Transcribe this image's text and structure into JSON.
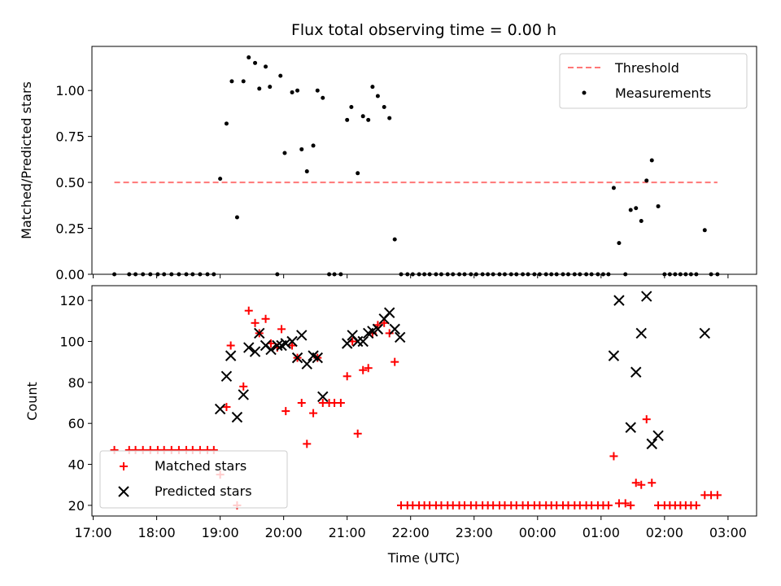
{
  "chart_data": [
    {
      "type": "scatter",
      "title": "Flux total observing time = 0.00 h",
      "xlabel": "",
      "ylabel": "Matched/Predicted stars",
      "ylim": [
        0,
        1.24
      ],
      "yticks": [
        "0.00",
        "0.25",
        "0.50",
        "0.75",
        "1.00"
      ],
      "xlim_hours": [
        16.98,
        27.45
      ],
      "legend_position": "top-right",
      "threshold": {
        "name": "Threshold",
        "value": 0.5,
        "x_range": [
          "17:20",
          "02:50"
        ],
        "color": "#ff7777"
      },
      "series": [
        {
          "name": "Measurements",
          "color": "#000000",
          "points": [
            [
              "17:20",
              0
            ],
            [
              "17:34",
              0
            ],
            [
              "17:40",
              0
            ],
            [
              "17:47",
              0
            ],
            [
              "17:54",
              0
            ],
            [
              "18:01",
              0
            ],
            [
              "18:07",
              0
            ],
            [
              "18:14",
              0
            ],
            [
              "18:21",
              0
            ],
            [
              "18:28",
              0
            ],
            [
              "18:34",
              0
            ],
            [
              "18:41",
              0
            ],
            [
              "18:48",
              0
            ],
            [
              "18:54",
              0
            ],
            [
              "19:00",
              0.52
            ],
            [
              "19:06",
              0.82
            ],
            [
              "19:11",
              1.05
            ],
            [
              "19:16",
              0.31
            ],
            [
              "19:22",
              1.05
            ],
            [
              "19:27",
              1.18
            ],
            [
              "19:33",
              1.15
            ],
            [
              "19:37",
              1.01
            ],
            [
              "19:43",
              1.13
            ],
            [
              "19:47",
              1.02
            ],
            [
              "19:54",
              0
            ],
            [
              "19:57",
              1.08
            ],
            [
              "20:01",
              0.66
            ],
            [
              "20:08",
              0.99
            ],
            [
              "20:13",
              1.0
            ],
            [
              "20:17",
              0.68
            ],
            [
              "20:22",
              0.56
            ],
            [
              "20:28",
              0.7
            ],
            [
              "20:32",
              1.0
            ],
            [
              "20:37",
              0.96
            ],
            [
              "20:43",
              0
            ],
            [
              "20:48",
              0
            ],
            [
              "20:54",
              0
            ],
            [
              "21:00",
              0.84
            ],
            [
              "21:04",
              0.91
            ],
            [
              "21:10",
              0.55
            ],
            [
              "21:15",
              0.86
            ],
            [
              "21:20",
              0.84
            ],
            [
              "21:24",
              1.02
            ],
            [
              "21:29",
              0.97
            ],
            [
              "21:35",
              0.91
            ],
            [
              "21:40",
              0.85
            ],
            [
              "21:45",
              0.19
            ],
            [
              "21:51",
              0
            ],
            [
              "21:57",
              0
            ],
            [
              "22:02",
              0
            ],
            [
              "22:08",
              0
            ],
            [
              "22:13",
              0
            ],
            [
              "22:18",
              0
            ],
            [
              "22:24",
              0
            ],
            [
              "22:29",
              0
            ],
            [
              "22:35",
              0
            ],
            [
              "22:40",
              0
            ],
            [
              "22:46",
              0
            ],
            [
              "22:51",
              0
            ],
            [
              "22:57",
              0
            ],
            [
              "23:02",
              0
            ],
            [
              "23:08",
              0
            ],
            [
              "23:13",
              0
            ],
            [
              "23:18",
              0
            ],
            [
              "23:24",
              0
            ],
            [
              "23:29",
              0
            ],
            [
              "23:35",
              0
            ],
            [
              "23:40",
              0
            ],
            [
              "23:46",
              0
            ],
            [
              "23:51",
              0
            ],
            [
              "23:57",
              0
            ],
            [
              "00:02",
              0
            ],
            [
              "00:08",
              0
            ],
            [
              "00:13",
              0
            ],
            [
              "00:18",
              0
            ],
            [
              "00:24",
              0
            ],
            [
              "00:29",
              0
            ],
            [
              "00:35",
              0
            ],
            [
              "00:40",
              0
            ],
            [
              "00:46",
              0
            ],
            [
              "00:51",
              0
            ],
            [
              "00:57",
              0
            ],
            [
              "01:02",
              0
            ],
            [
              "01:07",
              0
            ],
            [
              "01:12",
              0.47
            ],
            [
              "01:17",
              0.17
            ],
            [
              "01:23",
              0
            ],
            [
              "01:28",
              0.35
            ],
            [
              "01:33",
              0.36
            ],
            [
              "01:38",
              0.29
            ],
            [
              "01:43",
              0.51
            ],
            [
              "01:48",
              0.62
            ],
            [
              "01:54",
              0.37
            ],
            [
              "02:00",
              0
            ],
            [
              "02:05",
              0
            ],
            [
              "02:10",
              0
            ],
            [
              "02:15",
              0
            ],
            [
              "02:20",
              0
            ],
            [
              "02:25",
              0
            ],
            [
              "02:30",
              0
            ],
            [
              "02:38",
              0.24
            ],
            [
              "02:44",
              0
            ],
            [
              "02:50",
              0
            ]
          ]
        }
      ]
    },
    {
      "type": "scatter",
      "title": "",
      "xlabel": "Time (UTC)",
      "ylabel": "Count",
      "ylim": [
        14.8,
        127.2
      ],
      "yticks": [
        "20",
        "40",
        "60",
        "80",
        "100",
        "120"
      ],
      "xticks": [
        "17:00",
        "18:00",
        "19:00",
        "20:00",
        "21:00",
        "22:00",
        "23:00",
        "00:00",
        "01:00",
        "02:00",
        "03:00"
      ],
      "xlim_hours": [
        16.98,
        27.45
      ],
      "legend_position": "lower-left",
      "series": [
        {
          "name": "Matched stars",
          "marker": "plus",
          "color": "#ff0000",
          "points": [
            [
              "17:20",
              47
            ],
            [
              "17:34",
              47
            ],
            [
              "17:40",
              47
            ],
            [
              "17:47",
              47
            ],
            [
              "17:54",
              47
            ],
            [
              "18:01",
              47
            ],
            [
              "18:07",
              47
            ],
            [
              "18:14",
              47
            ],
            [
              "18:21",
              47
            ],
            [
              "18:28",
              47
            ],
            [
              "18:34",
              47
            ],
            [
              "18:41",
              47
            ],
            [
              "18:48",
              47
            ],
            [
              "18:54",
              47
            ],
            [
              "19:00",
              35
            ],
            [
              "19:06",
              68
            ],
            [
              "19:10",
              98
            ],
            [
              "19:16",
              20
            ],
            [
              "19:22",
              78
            ],
            [
              "19:27",
              115
            ],
            [
              "19:33",
              109
            ],
            [
              "19:37",
              104
            ],
            [
              "19:43",
              111
            ],
            [
              "19:48",
              99
            ],
            [
              "19:54",
              97
            ],
            [
              "19:58",
              106
            ],
            [
              "20:02",
              66
            ],
            [
              "20:08",
              98
            ],
            [
              "20:13",
              92
            ],
            [
              "20:17",
              70
            ],
            [
              "20:22",
              50
            ],
            [
              "20:28",
              65
            ],
            [
              "20:32",
              92
            ],
            [
              "20:37",
              70
            ],
            [
              "20:43",
              70
            ],
            [
              "20:48",
              70
            ],
            [
              "20:54",
              70
            ],
            [
              "21:00",
              83
            ],
            [
              "21:05",
              100
            ],
            [
              "21:10",
              55
            ],
            [
              "21:15",
              86
            ],
            [
              "21:20",
              87
            ],
            [
              "21:24",
              104
            ],
            [
              "21:29",
              108
            ],
            [
              "21:35",
              109
            ],
            [
              "21:40",
              104
            ],
            [
              "21:45",
              90
            ],
            [
              "21:51",
              20
            ],
            [
              "21:57",
              20
            ],
            [
              "22:02",
              20
            ],
            [
              "22:08",
              20
            ],
            [
              "22:13",
              20
            ],
            [
              "22:18",
              20
            ],
            [
              "22:24",
              20
            ],
            [
              "22:29",
              20
            ],
            [
              "22:35",
              20
            ],
            [
              "22:40",
              20
            ],
            [
              "22:46",
              20
            ],
            [
              "22:51",
              20
            ],
            [
              "22:57",
              20
            ],
            [
              "23:02",
              20
            ],
            [
              "23:08",
              20
            ],
            [
              "23:13",
              20
            ],
            [
              "23:18",
              20
            ],
            [
              "23:24",
              20
            ],
            [
              "23:29",
              20
            ],
            [
              "23:35",
              20
            ],
            [
              "23:40",
              20
            ],
            [
              "23:46",
              20
            ],
            [
              "23:51",
              20
            ],
            [
              "23:57",
              20
            ],
            [
              "00:02",
              20
            ],
            [
              "00:08",
              20
            ],
            [
              "00:13",
              20
            ],
            [
              "00:18",
              20
            ],
            [
              "00:24",
              20
            ],
            [
              "00:29",
              20
            ],
            [
              "00:35",
              20
            ],
            [
              "00:40",
              20
            ],
            [
              "00:46",
              20
            ],
            [
              "00:51",
              20
            ],
            [
              "00:57",
              20
            ],
            [
              "01:02",
              20
            ],
            [
              "01:07",
              20
            ],
            [
              "01:12",
              44
            ],
            [
              "01:17",
              21
            ],
            [
              "01:23",
              21
            ],
            [
              "01:28",
              20
            ],
            [
              "01:33",
              31
            ],
            [
              "01:38",
              30
            ],
            [
              "01:43",
              62
            ],
            [
              "01:48",
              31
            ],
            [
              "01:54",
              20
            ],
            [
              "02:00",
              20
            ],
            [
              "02:05",
              20
            ],
            [
              "02:10",
              20
            ],
            [
              "02:15",
              20
            ],
            [
              "02:20",
              20
            ],
            [
              "02:25",
              20
            ],
            [
              "02:30",
              20
            ],
            [
              "02:38",
              25
            ],
            [
              "02:44",
              25
            ],
            [
              "02:50",
              25
            ]
          ]
        },
        {
          "name": "Predicted stars",
          "marker": "x",
          "color": "#000000",
          "points": [
            [
              "19:00",
              67
            ],
            [
              "19:06",
              83
            ],
            [
              "19:10",
              93
            ],
            [
              "19:16",
              63
            ],
            [
              "19:22",
              74
            ],
            [
              "19:27",
              97
            ],
            [
              "19:33",
              95
            ],
            [
              "19:37",
              104
            ],
            [
              "19:43",
              98
            ],
            [
              "19:48",
              96
            ],
            [
              "19:54",
              98
            ],
            [
              "19:58",
              98
            ],
            [
              "20:02",
              99
            ],
            [
              "20:08",
              100
            ],
            [
              "20:13",
              92
            ],
            [
              "20:17",
              103
            ],
            [
              "20:22",
              89
            ],
            [
              "20:28",
              93
            ],
            [
              "20:32",
              92
            ],
            [
              "20:37",
              73
            ],
            [
              "21:00",
              99
            ],
            [
              "21:05",
              103
            ],
            [
              "21:10",
              100
            ],
            [
              "21:15",
              100
            ],
            [
              "21:20",
              104
            ],
            [
              "21:24",
              105
            ],
            [
              "21:29",
              106
            ],
            [
              "21:35",
              111
            ],
            [
              "21:40",
              114
            ],
            [
              "21:45",
              106
            ],
            [
              "21:50",
              102
            ],
            [
              "01:12",
              93
            ],
            [
              "01:17",
              120
            ],
            [
              "01:28",
              58
            ],
            [
              "01:33",
              85
            ],
            [
              "01:38",
              104
            ],
            [
              "01:43",
              122
            ],
            [
              "01:48",
              50
            ],
            [
              "01:54",
              54
            ],
            [
              "02:38",
              104
            ]
          ]
        }
      ]
    }
  ]
}
